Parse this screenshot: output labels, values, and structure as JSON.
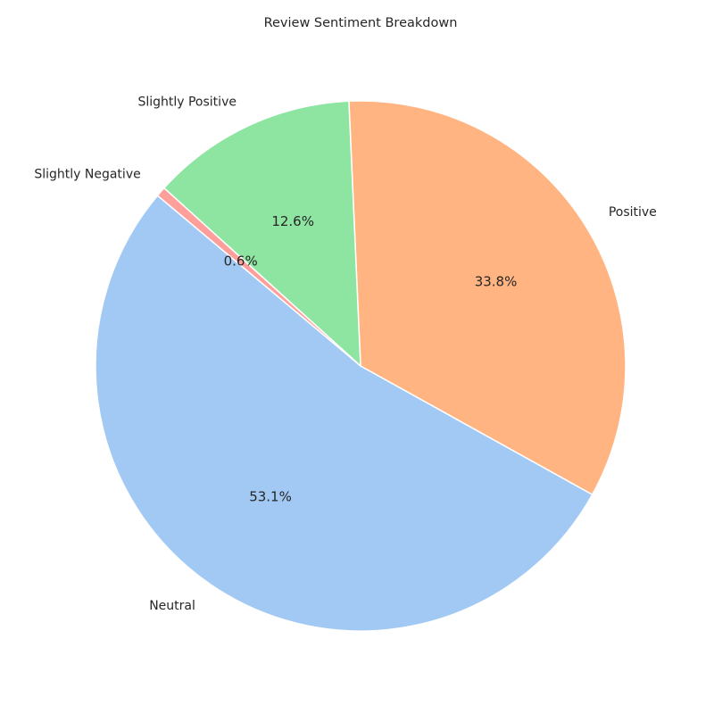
{
  "chart_data": {
    "type": "pie",
    "title": "Review Sentiment Breakdown",
    "slices": [
      {
        "label": "Neutral",
        "value": 53.1,
        "pct_label": "53.1%",
        "color": "#a1c9f4"
      },
      {
        "label": "Positive",
        "value": 33.8,
        "pct_label": "33.8%",
        "color": "#ffb482"
      },
      {
        "label": "Slightly Positive",
        "value": 12.6,
        "pct_label": "12.6%",
        "color": "#8de5a1"
      },
      {
        "label": "Slightly Negative",
        "value": 0.6,
        "pct_label": "0.6%",
        "color": "#ff9f9b"
      }
    ],
    "start_angle_deg": 140,
    "direction": "counterclockwise",
    "legend": "none"
  }
}
